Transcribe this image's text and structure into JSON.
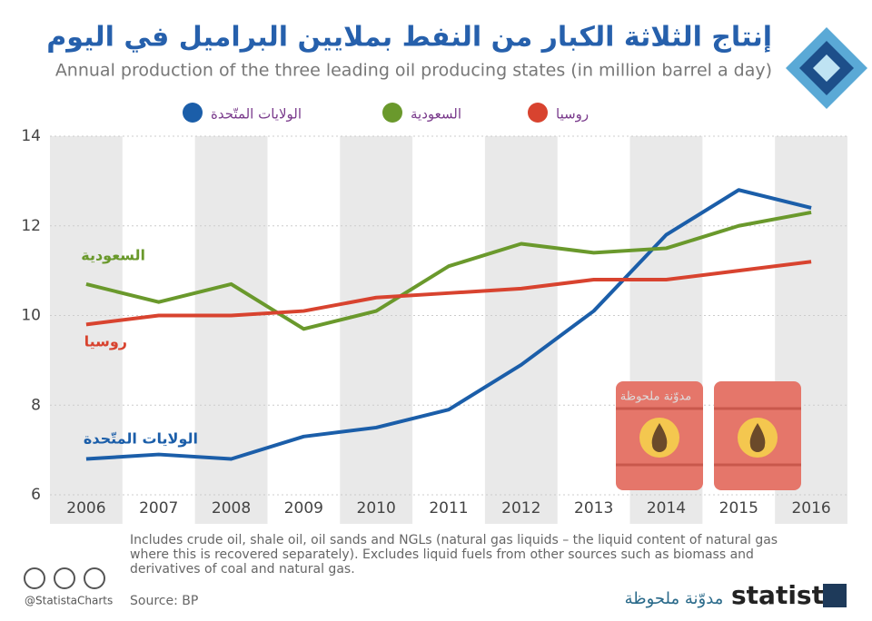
{
  "chart_data": {
    "type": "line",
    "title": "إنتاج الثلاثة الكبار من النفط بملايين البراميل في اليوم",
    "subtitle": "Annual production of the three leading oil producing states (in million barrel a day)",
    "categories": [
      "2006",
      "2007",
      "2008",
      "2009",
      "2010",
      "2011",
      "2012",
      "2013",
      "2014",
      "2015",
      "2016"
    ],
    "series": [
      {
        "name": "الولايات المتّحدة",
        "color": "#1b5ea9",
        "values": [
          6.8,
          6.9,
          6.8,
          7.3,
          7.5,
          7.9,
          8.9,
          10.1,
          11.8,
          12.8,
          12.4
        ]
      },
      {
        "name": "السعودية",
        "color": "#6a992c",
        "values": [
          10.7,
          10.3,
          10.7,
          9.7,
          10.1,
          11.1,
          11.6,
          11.4,
          11.5,
          12.0,
          12.3
        ]
      },
      {
        "name": "روسيا",
        "color": "#d8432f",
        "values": [
          9.8,
          10.0,
          10.0,
          10.1,
          10.4,
          10.5,
          10.6,
          10.8,
          10.8,
          11.0,
          11.2
        ]
      }
    ],
    "ylim": [
      6,
      14
    ],
    "yticks": [
      6,
      8,
      10,
      12,
      14
    ],
    "grid": true,
    "watermark": "مدوّنة ملحوظة",
    "note": "Includes crude oil, shale oil, oil sands and NGLs (natural gas liquids – the liquid content of natural gas where this is recovered separately). Excludes liquid fuels from other sources such as biomass and derivatives of coal and natural gas.",
    "source": "Source: BP",
    "handle": "@StatistaCharts",
    "brand": "statista"
  }
}
